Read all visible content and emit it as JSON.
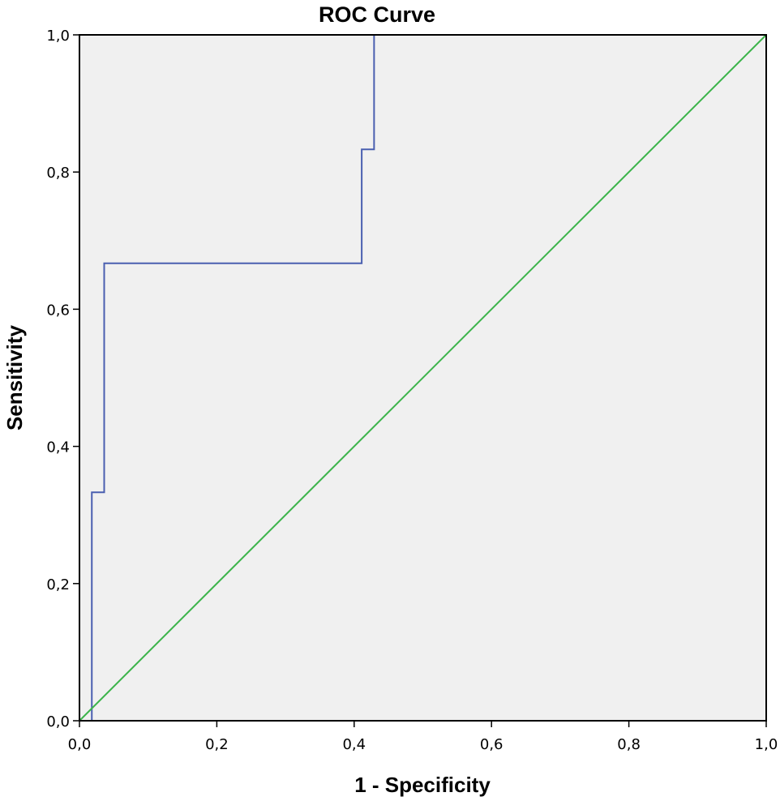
{
  "chart_data": {
    "type": "line",
    "title": "ROC Curve",
    "xlabel": "1 - Specificity",
    "ylabel": "Sensitivity",
    "xlim": [
      0,
      1
    ],
    "ylim": [
      0,
      1
    ],
    "x_ticks": [
      "0,0",
      "0,2",
      "0,4",
      "0,6",
      "0,8",
      "1,0"
    ],
    "y_ticks": [
      "0,0",
      "0,2",
      "0,4",
      "0,6",
      "0,8",
      "1,0"
    ],
    "grid": false,
    "background_color": "#f0f0f0",
    "series": [
      {
        "color": "#4a5fb0",
        "points": [
          [
            0.018,
            0.0
          ],
          [
            0.018,
            0.333
          ],
          [
            0.036,
            0.333
          ],
          [
            0.036,
            0.667
          ],
          [
            0.411,
            0.667
          ],
          [
            0.411,
            0.833
          ],
          [
            0.429,
            0.833
          ],
          [
            0.429,
            1.0
          ],
          [
            1.0,
            1.0
          ]
        ]
      },
      {
        "color": "#3cb44b",
        "points": [
          [
            0.0,
            0.0
          ],
          [
            1.0,
            1.0
          ]
        ]
      }
    ]
  }
}
